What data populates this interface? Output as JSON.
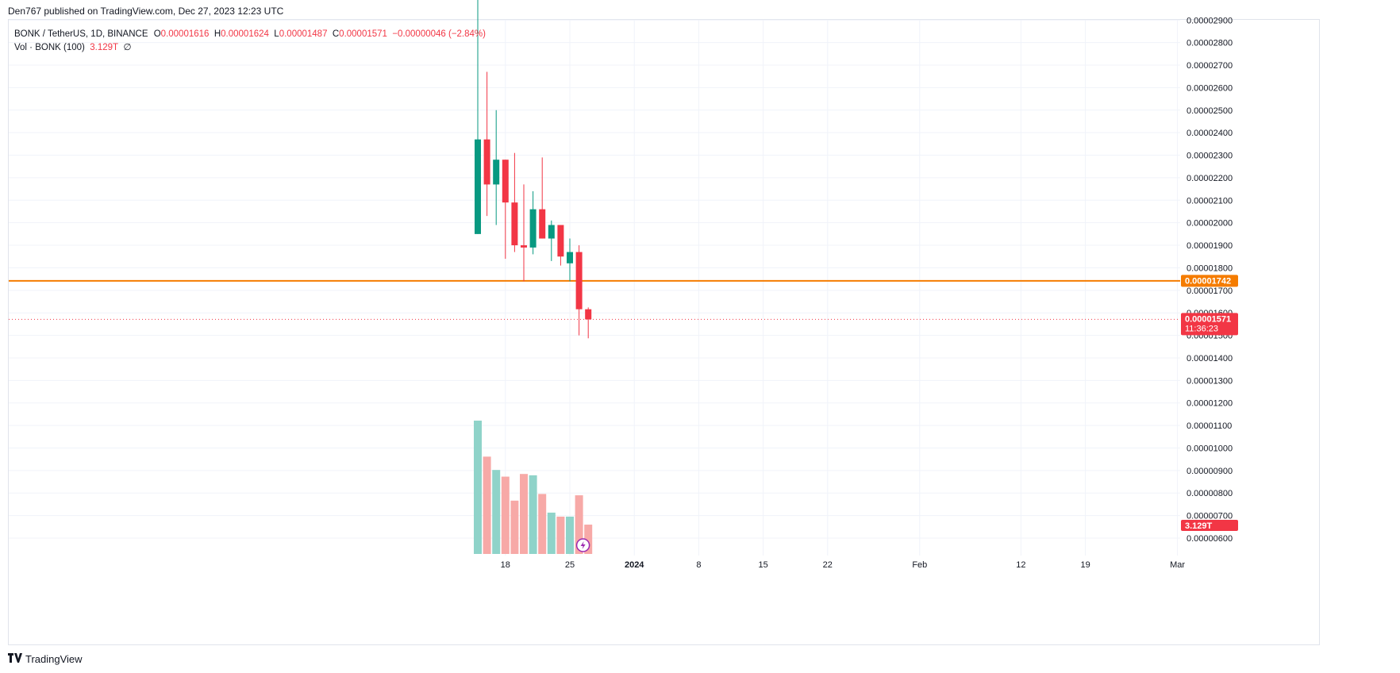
{
  "publisher_text": "Den767 published on TradingView.com, Dec 27, 2023 12:23 UTC",
  "legend": {
    "symbol": "BONK / TetherUS, 1D, BINANCE",
    "o_label": "O",
    "o_value": "0.00001616",
    "h_label": "H",
    "h_value": "0.00001624",
    "l_label": "L",
    "l_value": "0.00001487",
    "c_label": "C",
    "c_value": "0.00001571",
    "change": "−0.00000046 (−2.84%)",
    "vol_label": "Vol · BONK (100)",
    "vol_value": "3.129T",
    "vol_extra": "∅"
  },
  "footer": {
    "brand": "TradingView",
    "logo_icon": "tradingview-logo-icon"
  },
  "colors": {
    "up": "#089981",
    "down": "#f23645",
    "up_vol": "#8fd3c9",
    "down_vol": "#f7a9a7",
    "level": "#f57c00",
    "grid": "#f0f3fa"
  },
  "chart_data": {
    "type": "candlestick",
    "price_axis": {
      "min": 5.5e-06,
      "max": 3.02e-05,
      "ticks": [
        "0.00002900",
        "0.00002800",
        "0.00002700",
        "0.00002600",
        "0.00002500",
        "0.00002400",
        "0.00002300",
        "0.00002200",
        "0.00002100",
        "0.00002000",
        "0.00001900",
        "0.00001800",
        "0.00001700",
        "0.00001600",
        "0.00001500",
        "0.00001400",
        "0.00001300",
        "0.00001200",
        "0.00001100",
        "0.00001000",
        "0.00000900",
        "0.00000800",
        "0.00000700",
        "0.00000600"
      ]
    },
    "time_axis": {
      "ticks": [
        {
          "label": "18",
          "index": 3,
          "bold": false
        },
        {
          "label": "25",
          "index": 10,
          "bold": false
        },
        {
          "label": "2024",
          "index": 17,
          "bold": true
        },
        {
          "label": "8",
          "index": 24,
          "bold": false
        },
        {
          "label": "15",
          "index": 31,
          "bold": false
        },
        {
          "label": "22",
          "index": 38,
          "bold": false
        },
        {
          "label": "Feb",
          "index": 48,
          "bold": false
        },
        {
          "label": "12",
          "index": 59,
          "bold": false
        },
        {
          "label": "19",
          "index": 66,
          "bold": false
        },
        {
          "label": "Mar",
          "index": 76,
          "bold": false
        }
      ]
    },
    "candles": [
      {
        "o": 1.95e-05,
        "h": 3.02e-05,
        "l": 1.95e-05,
        "c": 2.37e-05
      },
      {
        "o": 2.37e-05,
        "h": 2.67e-05,
        "l": 2.03e-05,
        "c": 2.17e-05
      },
      {
        "o": 2.17e-05,
        "h": 2.5e-05,
        "l": 1.99e-05,
        "c": 2.28e-05
      },
      {
        "o": 2.28e-05,
        "h": 2.28e-05,
        "l": 1.84e-05,
        "c": 2.09e-05
      },
      {
        "o": 2.09e-05,
        "h": 2.31e-05,
        "l": 1.87e-05,
        "c": 1.9e-05
      },
      {
        "o": 1.9e-05,
        "h": 2.17e-05,
        "l": 1.74e-05,
        "c": 1.89e-05
      },
      {
        "o": 1.89e-05,
        "h": 2.14e-05,
        "l": 1.86e-05,
        "c": 2.06e-05
      },
      {
        "o": 2.06e-05,
        "h": 2.29e-05,
        "l": 1.93e-05,
        "c": 1.93e-05
      },
      {
        "o": 1.93e-05,
        "h": 2.01e-05,
        "l": 1.83e-05,
        "c": 1.99e-05
      },
      {
        "o": 1.99e-05,
        "h": 1.99e-05,
        "l": 1.81e-05,
        "c": 1.85e-05
      },
      {
        "o": 1.82e-05,
        "h": 1.93e-05,
        "l": 1.74e-05,
        "c": 1.87e-05
      },
      {
        "o": 1.87e-05,
        "h": 1.9e-05,
        "l": 1.5e-05,
        "c": 1.616e-05
      },
      {
        "o": 1.616e-05,
        "h": 1.624e-05,
        "l": 1.487e-05,
        "c": 1.571e-05
      }
    ],
    "volumes": [
      1.0,
      0.73,
      0.63,
      0.58,
      0.4,
      0.6,
      0.59,
      0.45,
      0.31,
      0.28,
      0.28,
      0.44,
      0.22
    ],
    "volume_last_label": "3.129T",
    "level_line": {
      "value": 1.742e-05,
      "label": "0.00001742"
    },
    "last_price": {
      "value": 1.571e-05,
      "label": "0.00001571",
      "countdown": "11:36:23"
    }
  }
}
